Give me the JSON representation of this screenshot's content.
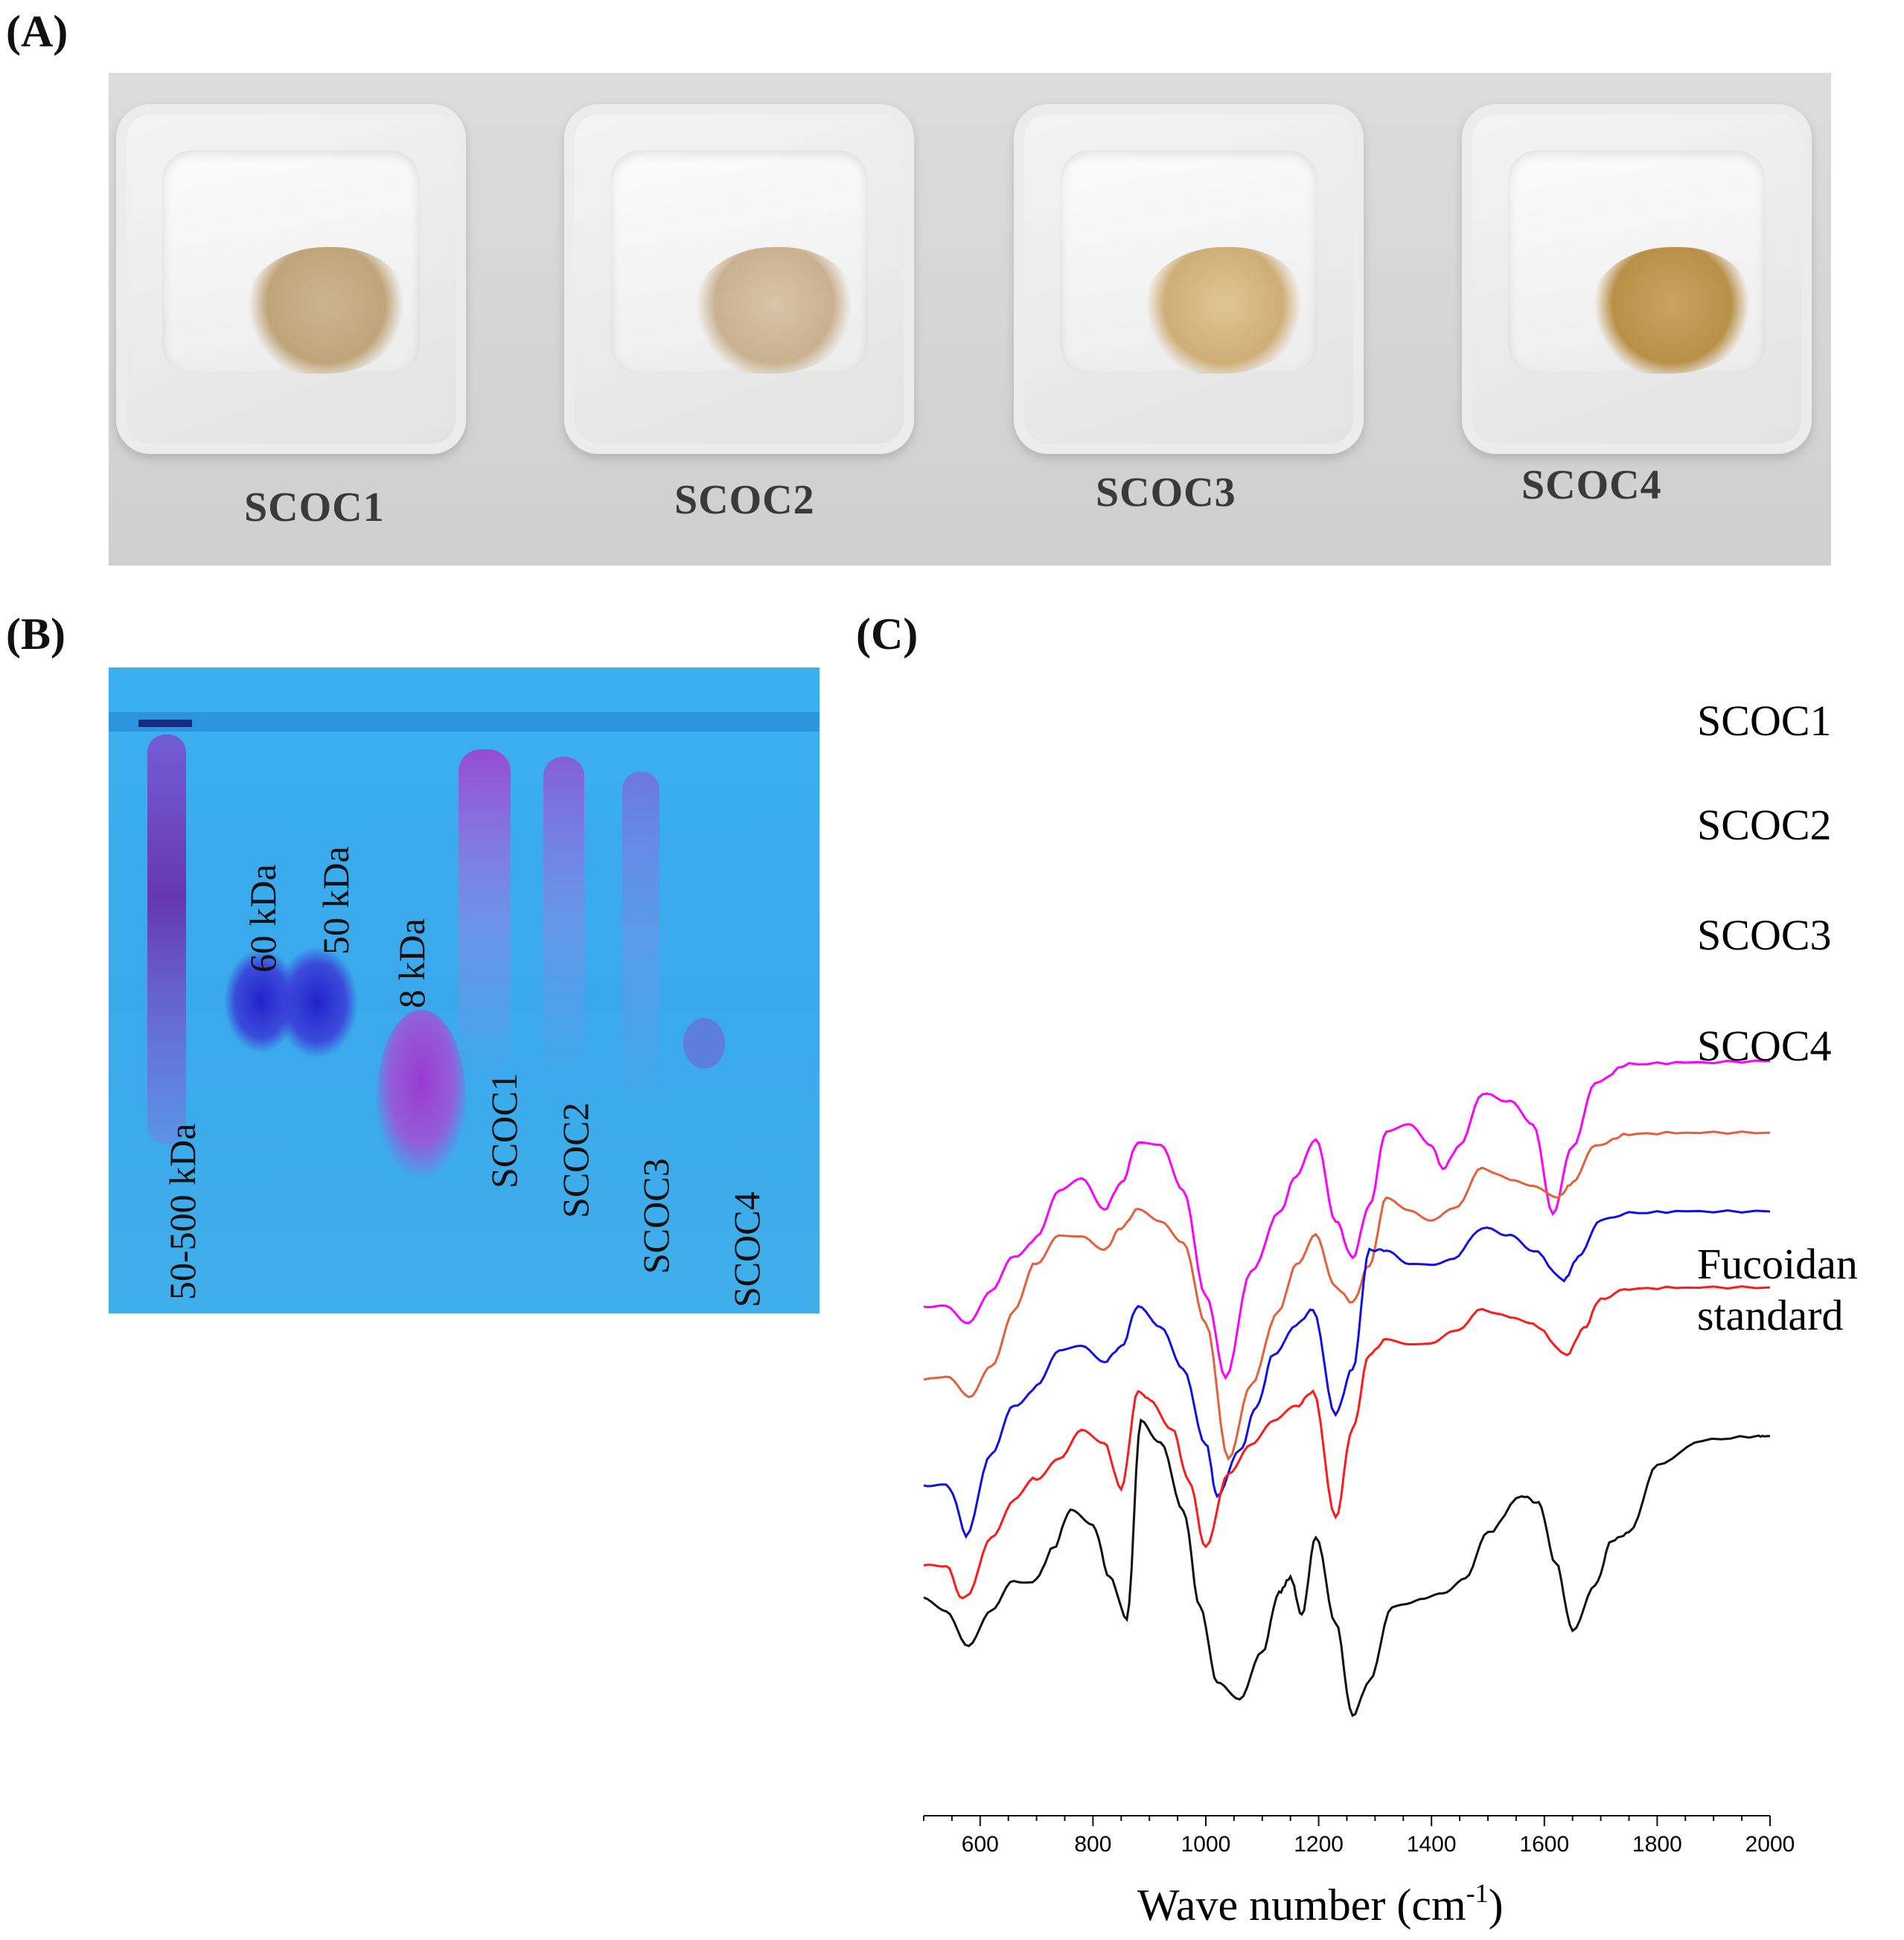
{
  "panels": {
    "a": {
      "label": "(A)",
      "samples": [
        "SCOC1",
        "SCOC2",
        "SCOC3",
        "SCOC4"
      ]
    },
    "b": {
      "label": "(B)",
      "markers": [
        "50-500 kDa",
        "60 kDa",
        "50 kDa",
        "8 kDa"
      ],
      "lanes": [
        "SCOC1",
        "SCOC2",
        "SCOC3",
        "SCOC4"
      ]
    },
    "c": {
      "label": "(C)"
    }
  },
  "chart_data": {
    "type": "line",
    "title": "",
    "xlabel_main": "Wave number (cm",
    "xlabel_sup": "-1",
    "xlabel_close": ")",
    "ylabel": "",
    "xlim": [
      500,
      2000
    ],
    "xticks": [
      600,
      800,
      1000,
      1200,
      1400,
      1600,
      1800,
      2000
    ],
    "legend_labels": [
      "SCOC1",
      "SCOC2",
      "SCOC3",
      "SCOC4",
      "Fucoidan",
      "standard"
    ],
    "series": [
      {
        "name": "SCOC1",
        "color": "#ff00ff",
        "points": [
          [
            500,
            880
          ],
          [
            540,
            870
          ],
          [
            580,
            895
          ],
          [
            620,
            860
          ],
          [
            660,
            810
          ],
          [
            700,
            780
          ],
          [
            740,
            720
          ],
          [
            780,
            705
          ],
          [
            820,
            745
          ],
          [
            850,
            710
          ],
          [
            880,
            655
          ],
          [
            920,
            660
          ],
          [
            960,
            720
          ],
          [
            1000,
            860
          ],
          [
            1035,
            970
          ],
          [
            1080,
            830
          ],
          [
            1130,
            750
          ],
          [
            1160,
            700
          ],
          [
            1195,
            650
          ],
          [
            1230,
            760
          ],
          [
            1260,
            810
          ],
          [
            1290,
            740
          ],
          [
            1320,
            640
          ],
          [
            1360,
            632
          ],
          [
            1400,
            660
          ],
          [
            1420,
            690
          ],
          [
            1450,
            660
          ],
          [
            1490,
            590
          ],
          [
            1540,
            600
          ],
          [
            1580,
            630
          ],
          [
            1615,
            750
          ],
          [
            1650,
            660
          ],
          [
            1690,
            575
          ],
          [
            1750,
            550
          ],
          [
            1850,
            548
          ],
          [
            2000,
            546
          ]
        ]
      },
      {
        "name": "SCOC2",
        "color": "#e5603a",
        "points": [
          [
            500,
            970
          ],
          [
            540,
            975
          ],
          [
            580,
            1000
          ],
          [
            620,
            950
          ],
          [
            660,
            880
          ],
          [
            700,
            820
          ],
          [
            740,
            780
          ],
          [
            780,
            780
          ],
          [
            820,
            800
          ],
          [
            850,
            770
          ],
          [
            880,
            745
          ],
          [
            920,
            760
          ],
          [
            960,
            790
          ],
          [
            1000,
            900
          ],
          [
            1040,
            1080
          ],
          [
            1080,
            980
          ],
          [
            1130,
            880
          ],
          [
            1160,
            820
          ],
          [
            1195,
            780
          ],
          [
            1230,
            850
          ],
          [
            1260,
            870
          ],
          [
            1290,
            820
          ],
          [
            1320,
            730
          ],
          [
            1360,
            745
          ],
          [
            1400,
            760
          ],
          [
            1440,
            745
          ],
          [
            1490,
            690
          ],
          [
            1540,
            705
          ],
          [
            1580,
            715
          ],
          [
            1625,
            728
          ],
          [
            1650,
            710
          ],
          [
            1690,
            660
          ],
          [
            1750,
            644
          ],
          [
            1850,
            642
          ],
          [
            2000,
            642
          ]
        ]
      },
      {
        "name": "SCOC3",
        "color": "#1010e8",
        "points": [
          [
            500,
            1120
          ],
          [
            540,
            1110
          ],
          [
            575,
            1180
          ],
          [
            620,
            1080
          ],
          [
            660,
            1010
          ],
          [
            700,
            980
          ],
          [
            740,
            935
          ],
          [
            780,
            930
          ],
          [
            820,
            950
          ],
          [
            850,
            930
          ],
          [
            880,
            875
          ],
          [
            920,
            905
          ],
          [
            960,
            960
          ],
          [
            1000,
            1060
          ],
          [
            1020,
            1130
          ],
          [
            1060,
            1070
          ],
          [
            1090,
            1010
          ],
          [
            1120,
            940
          ],
          [
            1160,
            900
          ],
          [
            1190,
            880
          ],
          [
            1230,
            1020
          ],
          [
            1260,
            960
          ],
          [
            1290,
            800
          ],
          [
            1320,
            800
          ],
          [
            1360,
            820
          ],
          [
            1400,
            820
          ],
          [
            1440,
            810
          ],
          [
            1490,
            770
          ],
          [
            1540,
            780
          ],
          [
            1580,
            800
          ],
          [
            1635,
            840
          ],
          [
            1660,
            810
          ],
          [
            1700,
            760
          ],
          [
            1750,
            750
          ],
          [
            1850,
            748
          ],
          [
            2000,
            748
          ]
        ]
      },
      {
        "name": "SCOC4",
        "color": "#ff1a1a",
        "points": [
          [
            500,
            1220
          ],
          [
            540,
            1230
          ],
          [
            575,
            1270
          ],
          [
            620,
            1180
          ],
          [
            660,
            1135
          ],
          [
            700,
            1110
          ],
          [
            740,
            1080
          ],
          [
            780,
            1040
          ],
          [
            820,
            1060
          ],
          [
            850,
            1120
          ],
          [
            880,
            990
          ],
          [
            900,
            1000
          ],
          [
            940,
            1040
          ],
          [
            970,
            1110
          ],
          [
            1000,
            1200
          ],
          [
            1040,
            1100
          ],
          [
            1080,
            1060
          ],
          [
            1120,
            1030
          ],
          [
            1160,
            1010
          ],
          [
            1190,
            990
          ],
          [
            1230,
            1160
          ],
          [
            1260,
            1040
          ],
          [
            1290,
            940
          ],
          [
            1320,
            920
          ],
          [
            1360,
            925
          ],
          [
            1400,
            925
          ],
          [
            1440,
            910
          ],
          [
            1490,
            880
          ],
          [
            1540,
            890
          ],
          [
            1580,
            900
          ],
          [
            1640,
            940
          ],
          [
            1670,
            905
          ],
          [
            1700,
            865
          ],
          [
            1750,
            852
          ],
          [
            1850,
            850
          ],
          [
            2000,
            850
          ]
        ]
      },
      {
        "name": "Fucoidan standard",
        "color": "#111111",
        "points": [
          [
            500,
            1270
          ],
          [
            540,
            1280
          ],
          [
            580,
            1330
          ],
          [
            620,
            1290
          ],
          [
            660,
            1245
          ],
          [
            700,
            1240
          ],
          [
            730,
            1200
          ],
          [
            760,
            1150
          ],
          [
            800,
            1170
          ],
          [
            830,
            1240
          ],
          [
            860,
            1295
          ],
          [
            885,
            1030
          ],
          [
            920,
            1060
          ],
          [
            960,
            1150
          ],
          [
            990,
            1280
          ],
          [
            1020,
            1380
          ],
          [
            1060,
            1405
          ],
          [
            1100,
            1340
          ],
          [
            1130,
            1260
          ],
          [
            1150,
            1240
          ],
          [
            1170,
            1290
          ],
          [
            1195,
            1185
          ],
          [
            1230,
            1300
          ],
          [
            1260,
            1425
          ],
          [
            1290,
            1380
          ],
          [
            1330,
            1280
          ],
          [
            1380,
            1270
          ],
          [
            1420,
            1260
          ],
          [
            1460,
            1240
          ],
          [
            1500,
            1180
          ],
          [
            1560,
            1130
          ],
          [
            1590,
            1140
          ],
          [
            1620,
            1220
          ],
          [
            1650,
            1310
          ],
          [
            1690,
            1250
          ],
          [
            1720,
            1190
          ],
          [
            1750,
            1180
          ],
          [
            1800,
            1090
          ],
          [
            1880,
            1055
          ],
          [
            1980,
            1050
          ],
          [
            2000,
            1050
          ]
        ]
      }
    ]
  }
}
